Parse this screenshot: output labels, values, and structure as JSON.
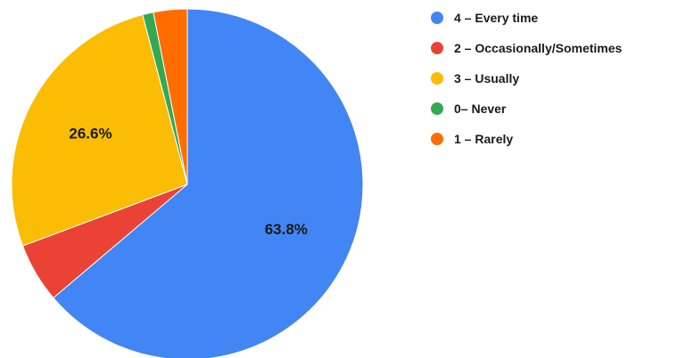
{
  "chart_data": {
    "type": "pie",
    "title": "",
    "legend_position": "right",
    "start_angle_deg": 0,
    "direction": "clockwise",
    "slices": [
      {
        "label": "4 – Every time",
        "value": 63.8,
        "color": "#4285f4",
        "data_label": "63.8%"
      },
      {
        "label": "2 – Occasionally/Sometimes",
        "value": 5.5,
        "color": "#ea4335",
        "data_label": ""
      },
      {
        "label": "3 – Usually",
        "value": 26.6,
        "color": "#fbbc04",
        "data_label": "26.6%"
      },
      {
        "label": "0– Never",
        "value": 1.0,
        "color": "#34a853",
        "data_label": ""
      },
      {
        "label": "1 – Rarely",
        "value": 3.1,
        "color": "#ff6d01",
        "data_label": ""
      }
    ]
  }
}
